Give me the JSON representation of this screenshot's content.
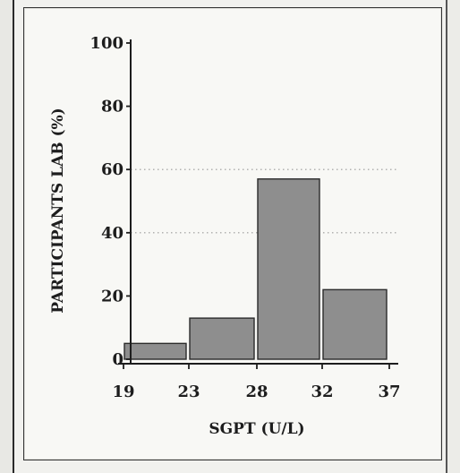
{
  "chart_data": {
    "type": "bar",
    "title": "",
    "xlabel": "SGPT (U/L)",
    "ylabel": "PARTICIPANTS LAB (%)",
    "x_ticks": [
      "19",
      "23",
      "28",
      "32",
      "37"
    ],
    "y_ticks": [
      "0",
      "20",
      "40",
      "60",
      "80",
      "100"
    ],
    "ylim": [
      0,
      100
    ],
    "bins": [
      {
        "from": "19",
        "to": "23",
        "value": 5
      },
      {
        "from": "23",
        "to": "28",
        "value": 13
      },
      {
        "from": "28",
        "to": "32",
        "value": 57
      },
      {
        "from": "32",
        "to": "37",
        "value": 22
      }
    ],
    "bar_color": "#8e8e8e",
    "grid": "dotted at 40 and 60"
  }
}
